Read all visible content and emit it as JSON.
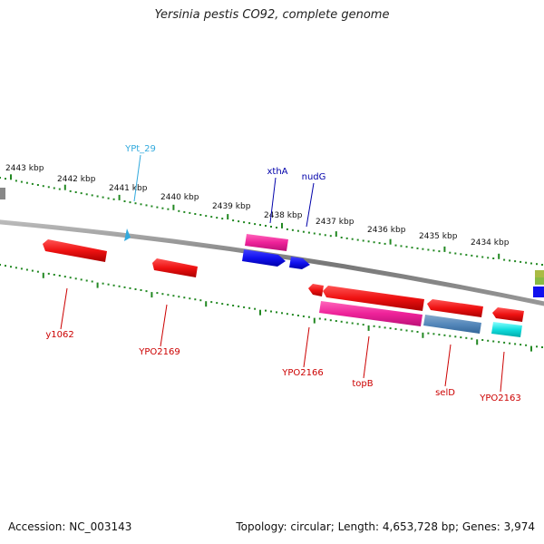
{
  "title": "Yersinia pestis CO92, complete genome",
  "footer": {
    "accession": "Accession: NC_003143",
    "summary": "Topology: circular; Length: 4,653,728 bp; Genes: 3,974"
  },
  "scale_labels": [
    "2443 kbp",
    "2442 kbp",
    "2441 kbp",
    "2440 kbp",
    "2439 kbp",
    "2438 kbp",
    "2437 kbp",
    "2436 kbp",
    "2435 kbp",
    "2434 kbp"
  ],
  "colors": {
    "red": "#ee1111",
    "magenta": "#ee2299",
    "blue": "#1111ee",
    "steel": "#5588bb",
    "cyan": "#11dddd",
    "cyan_label": "#33aadd",
    "green_tick": "#228822",
    "backbone": "#888888",
    "red_label": "#cc0000",
    "blue_label": "#0000aa"
  },
  "features": [
    {
      "name": "y1062",
      "color": "red"
    },
    {
      "name": "YPO2169",
      "color": "red"
    },
    {
      "name": "YPt_29",
      "color": "cyan_label"
    },
    {
      "name": "xthA",
      "color": "blue"
    },
    {
      "name": "nudG",
      "color": "blue"
    },
    {
      "name": "YPO2166",
      "color": "red"
    },
    {
      "name": "topB",
      "color": "red"
    },
    {
      "name": "selD",
      "color": "red"
    },
    {
      "name": "YPO2163",
      "color": "red"
    }
  ]
}
